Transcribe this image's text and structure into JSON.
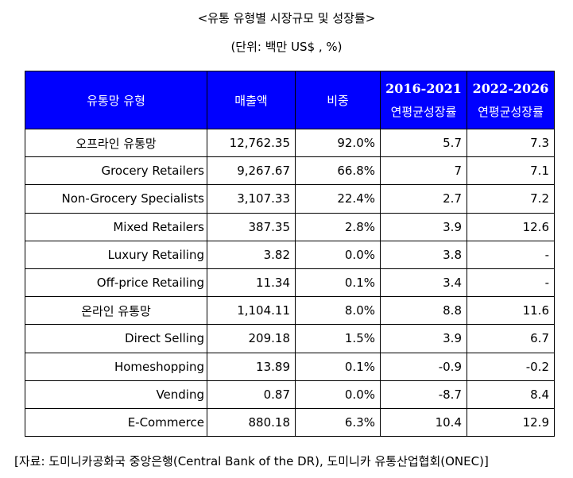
{
  "title": "<유통 유형별 시장규모 및 성장률>",
  "unit": "(단위: 백만 US$ , %)",
  "table": {
    "headers": {
      "type": "유통망 유형",
      "sales": "매출액",
      "share": "비중",
      "period1_year": "2016-2021",
      "period1_label": "연평균성장률",
      "period2_year": "2022-2026",
      "period2_label": "연평균성장률"
    },
    "rows": [
      {
        "name": "오프라인 유통망",
        "sales": "12,762.35",
        "share": "92.0%",
        "g1": "5.7",
        "g2": "7.3"
      },
      {
        "name": "Grocery Retailers",
        "sales": "9,267.67",
        "share": "66.8%",
        "g1": "7",
        "g2": "7.1"
      },
      {
        "name": "Non-Grocery Specialists",
        "sales": "3,107.33",
        "share": "22.4%",
        "g1": "2.7",
        "g2": "7.2"
      },
      {
        "name": "Mixed Retailers",
        "sales": "387.35",
        "share": "2.8%",
        "g1": "3.9",
        "g2": "12.6"
      },
      {
        "name": "Luxury Retailing",
        "sales": "3.82",
        "share": "0.0%",
        "g1": "3.8",
        "g2": "-"
      },
      {
        "name": "Off-price Retailing",
        "sales": "11.34",
        "share": "0.1%",
        "g1": "3.4",
        "g2": "-"
      },
      {
        "name": "온라인 유통망",
        "sales": "1,104.11",
        "share": "8.0%",
        "g1": "8.8",
        "g2": "11.6"
      },
      {
        "name": "Direct Selling",
        "sales": "209.18",
        "share": "1.5%",
        "g1": "3.9",
        "g2": "6.7"
      },
      {
        "name": "Homeshopping",
        "sales": "13.89",
        "share": "0.1%",
        "g1": "-0.9",
        "g2": "-0.2"
      },
      {
        "name": "Vending",
        "sales": "0.87",
        "share": "0.0%",
        "g1": "-8.7",
        "g2": "8.4"
      },
      {
        "name": "E-Commerce",
        "sales": "880.18",
        "share": "6.3%",
        "g1": "10.4",
        "g2": "12.9"
      }
    ]
  },
  "source": "[자료: 도미니카공화국 중앙은행(Central Bank of the DR), 도미니카 유통산업협회(ONEC)]",
  "colors": {
    "header_bg": "#0000ff",
    "header_text": "#ffffff",
    "border": "#000000"
  }
}
